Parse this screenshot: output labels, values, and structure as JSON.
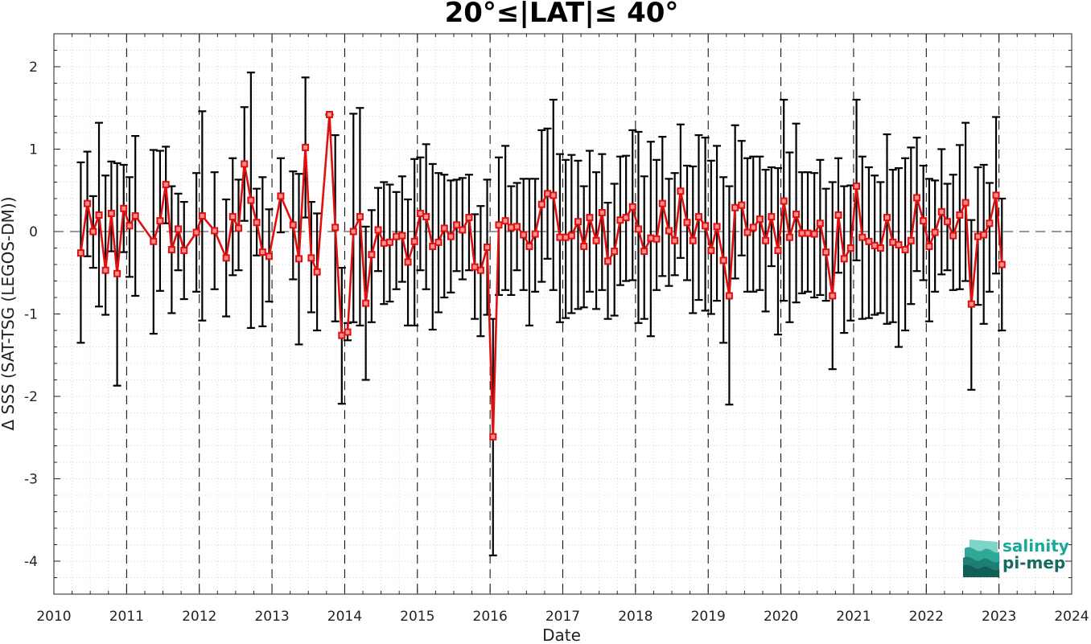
{
  "chart_data": {
    "type": "line",
    "title": "20°≤|LAT|≤ 40°",
    "xlabel": "Date",
    "ylabel": "Δ SSS (SAT-TSG (LEGOS-DM))",
    "xlim": [
      2010,
      2024
    ],
    "ylim": [
      -4.4,
      2.4
    ],
    "x_ticks": [
      "2010",
      "2011",
      "2012",
      "2013",
      "2014",
      "2015",
      "2016",
      "2017",
      "2018",
      "2019",
      "2020",
      "2021",
      "2022",
      "2023",
      "2024"
    ],
    "y_ticks": [
      "2",
      "1",
      "0",
      "-1",
      "-2",
      "-3",
      "-4"
    ],
    "grid": true,
    "year_dividers": [
      2011,
      2012,
      2013,
      2014,
      2015,
      2016,
      2017,
      2018,
      2019,
      2020,
      2021,
      2022,
      2023
    ],
    "series": [
      {
        "error_bar_color": "#000000",
        "line_color": "#e01010",
        "marker": "square",
        "x": [
          2010.37,
          2010.46,
          2010.54,
          2010.62,
          2010.71,
          2010.79,
          2010.87,
          2010.96,
          2011.04,
          2011.12,
          2011.37,
          2011.46,
          2011.54,
          2011.62,
          2011.71,
          2011.79,
          2011.96,
          2012.04,
          2012.21,
          2012.37,
          2012.46,
          2012.54,
          2012.62,
          2012.71,
          2012.79,
          2012.87,
          2012.96,
          2013.12,
          2013.29,
          2013.37,
          2013.46,
          2013.54,
          2013.62,
          2013.79,
          2013.87,
          2013.96,
          2014.04,
          2014.12,
          2014.21,
          2014.29,
          2014.37,
          2014.46,
          2014.54,
          2014.62,
          2014.71,
          2014.79,
          2014.87,
          2014.96,
          2015.04,
          2015.12,
          2015.21,
          2015.29,
          2015.37,
          2015.46,
          2015.54,
          2015.62,
          2015.71,
          2015.79,
          2015.87,
          2015.96,
          2016.04,
          2016.12,
          2016.21,
          2016.29,
          2016.37,
          2016.46,
          2016.54,
          2016.62,
          2016.71,
          2016.79,
          2016.87,
          2016.96,
          2017.04,
          2017.12,
          2017.21,
          2017.29,
          2017.37,
          2017.46,
          2017.54,
          2017.62,
          2017.71,
          2017.79,
          2017.87,
          2017.96,
          2018.04,
          2018.12,
          2018.21,
          2018.29,
          2018.37,
          2018.46,
          2018.54,
          2018.62,
          2018.71,
          2018.79,
          2018.87,
          2018.96,
          2019.04,
          2019.12,
          2019.21,
          2019.29,
          2019.37,
          2019.46,
          2019.54,
          2019.62,
          2019.71,
          2019.79,
          2019.87,
          2019.96,
          2020.04,
          2020.12,
          2020.21,
          2020.29,
          2020.37,
          2020.46,
          2020.54,
          2020.62,
          2020.71,
          2020.79,
          2020.87,
          2020.96,
          2021.04,
          2021.12,
          2021.21,
          2021.29,
          2021.37,
          2021.46,
          2021.54,
          2021.62,
          2021.71,
          2021.79,
          2021.87,
          2021.96,
          2022.04,
          2022.12,
          2022.21,
          2022.29,
          2022.37,
          2022.46,
          2022.54,
          2022.62,
          2022.71,
          2022.79,
          2022.87,
          2022.96,
          2023.04
        ],
        "y": [
          -0.26,
          0.34,
          0.0,
          0.2,
          -0.47,
          0.22,
          -0.51,
          0.28,
          0.07,
          0.19,
          -0.12,
          0.13,
          0.57,
          -0.22,
          0.03,
          -0.23,
          -0.01,
          0.19,
          0.01,
          -0.32,
          0.18,
          0.04,
          0.82,
          0.38,
          0.11,
          -0.25,
          -0.3,
          0.43,
          0.08,
          -0.33,
          1.02,
          -0.32,
          -0.49,
          1.42,
          0.05,
          -1.26,
          -1.22,
          0.0,
          0.18,
          -0.87,
          -0.28,
          0.02,
          -0.14,
          -0.13,
          -0.06,
          -0.05,
          -0.37,
          -0.12,
          0.22,
          0.18,
          -0.18,
          -0.13,
          0.04,
          -0.06,
          0.08,
          0.02,
          0.17,
          -0.43,
          -0.47,
          -0.19,
          -2.49,
          0.08,
          0.13,
          0.05,
          0.06,
          -0.04,
          -0.18,
          -0.03,
          0.33,
          0.46,
          0.44,
          -0.07,
          -0.07,
          -0.05,
          0.12,
          -0.18,
          0.17,
          -0.11,
          0.23,
          -0.36,
          -0.24,
          0.14,
          0.17,
          0.3,
          0.03,
          -0.24,
          -0.08,
          -0.09,
          0.34,
          0.01,
          -0.11,
          0.49,
          0.11,
          -0.11,
          0.18,
          0.07,
          -0.23,
          0.06,
          -0.35,
          -0.78,
          0.29,
          0.32,
          -0.01,
          0.05,
          0.15,
          -0.11,
          0.18,
          -0.23,
          0.37,
          -0.07,
          0.21,
          -0.02,
          -0.02,
          -0.03,
          0.1,
          -0.25,
          -0.78,
          0.2,
          -0.33,
          -0.2,
          0.55,
          -0.07,
          -0.12,
          -0.17,
          -0.2,
          0.17,
          -0.13,
          -0.16,
          -0.22,
          -0.11,
          0.41,
          0.13,
          -0.18,
          -0.01,
          0.24,
          0.12,
          -0.05,
          0.2,
          0.35,
          -0.88,
          -0.06,
          -0.04,
          0.1,
          0.44,
          -0.4
        ],
        "y_lower": [
          -1.35,
          -0.3,
          -0.44,
          -0.91,
          -1.01,
          -0.24,
          -1.87,
          -0.25,
          -0.55,
          -0.78,
          -1.24,
          -0.72,
          0.1,
          -0.99,
          -0.47,
          -0.82,
          -0.73,
          -1.08,
          -0.7,
          -1.03,
          -0.53,
          -0.47,
          0.13,
          -1.17,
          -0.29,
          -1.15,
          -0.85,
          -0.01,
          -0.58,
          -1.37,
          0.17,
          -0.98,
          -1.2,
          1.42,
          -1.09,
          -2.09,
          -1.32,
          -1.1,
          -1.14,
          -1.8,
          -1.1,
          -0.48,
          -0.88,
          -0.85,
          -0.7,
          -0.61,
          -1.14,
          -1.14,
          -0.47,
          -0.7,
          -1.19,
          -0.98,
          -0.8,
          -0.74,
          -0.48,
          -0.58,
          -0.47,
          -1.06,
          -1.27,
          -1.01,
          -3.93,
          -0.77,
          -0.71,
          -0.77,
          -0.47,
          -0.71,
          -1.14,
          -0.73,
          -0.61,
          -0.33,
          -0.71,
          -1.1,
          -1.05,
          -0.99,
          -0.94,
          -0.92,
          -0.73,
          -0.94,
          -0.71,
          -1.06,
          -1.02,
          -0.65,
          -0.6,
          -0.59,
          -1.11,
          -1.06,
          -1.27,
          -0.71,
          -0.54,
          -0.66,
          -0.53,
          -0.32,
          -0.59,
          -0.99,
          -0.83,
          -0.96,
          -1.0,
          -0.84,
          -1.35,
          -2.1,
          -0.57,
          -0.29,
          -0.73,
          -0.73,
          -0.71,
          -0.97,
          -0.42,
          -1.25,
          -0.84,
          -1.1,
          -0.86,
          -0.75,
          -0.73,
          -0.8,
          -0.77,
          -0.84,
          -1.67,
          -0.5,
          -1.23,
          -1.08,
          -0.35,
          -1.06,
          -1.05,
          -1.01,
          -0.99,
          -1.12,
          -1.1,
          -1.4,
          -1.2,
          -0.88,
          -0.48,
          -0.59,
          -1.09,
          -0.73,
          -0.52,
          -0.47,
          -0.71,
          -0.7,
          -0.6,
          -1.92,
          -0.89,
          -1.12,
          -0.73,
          -0.51,
          -1.2
        ],
        "y_upper": [
          0.84,
          0.97,
          0.43,
          1.32,
          0.68,
          0.85,
          0.83,
          0.81,
          0.66,
          1.16,
          0.99,
          0.98,
          1.03,
          0.55,
          0.46,
          0.36,
          0.71,
          1.46,
          0.72,
          0.39,
          0.89,
          0.63,
          1.51,
          1.93,
          0.52,
          0.66,
          0.27,
          0.89,
          0.73,
          0.7,
          1.87,
          0.36,
          0.22,
          1.42,
          1.17,
          -0.44,
          -1.11,
          1.43,
          1.5,
          0.06,
          0.26,
          0.53,
          0.6,
          0.57,
          0.48,
          0.67,
          0.39,
          0.88,
          0.9,
          1.06,
          0.82,
          0.71,
          0.69,
          0.62,
          0.63,
          0.65,
          0.69,
          0.21,
          0.31,
          0.63,
          -1.06,
          0.9,
          1.04,
          0.55,
          0.59,
          0.64,
          0.64,
          0.64,
          1.23,
          1.25,
          1.6,
          0.94,
          0.87,
          0.93,
          0.86,
          0.55,
          0.98,
          0.72,
          0.94,
          0.35,
          0.58,
          0.91,
          0.92,
          1.23,
          1.21,
          0.67,
          1.09,
          0.87,
          1.15,
          0.64,
          0.71,
          1.3,
          0.8,
          0.79,
          1.17,
          1.14,
          0.86,
          1.04,
          0.66,
          0.55,
          1.29,
          1.1,
          0.89,
          0.91,
          0.91,
          0.75,
          0.78,
          0.77,
          1.6,
          0.96,
          1.31,
          0.72,
          0.72,
          0.71,
          0.87,
          0.52,
          0.6,
          0.89,
          0.55,
          0.56,
          1.6,
          0.91,
          0.78,
          0.68,
          0.6,
          1.18,
          0.75,
          0.77,
          0.89,
          1.02,
          1.14,
          0.8,
          0.64,
          0.62,
          1.0,
          0.58,
          0.69,
          1.05,
          1.32,
          0.14,
          0.78,
          0.81,
          0.59,
          1.39,
          0.4
        ]
      }
    ]
  },
  "logo": {
    "line1": "salinity",
    "line2": "pi-mep",
    "color_top": "#1aa89a",
    "color_bottom": "#156b5f"
  }
}
